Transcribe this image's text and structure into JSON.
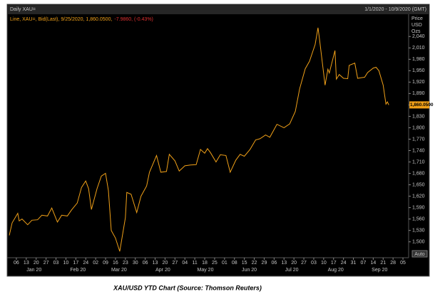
{
  "chart_data": {
    "type": "line",
    "title": "Daily XAU=",
    "date_range": "1/1/2020 - 10/9/2020 (GMT)",
    "legend_text": "Line, XAU=, Bid(Last), 9/25/2020, 1,860.0500,",
    "legend_change": "-7.9860, (-0.43%)",
    "y_axis_label": [
      "Price",
      "USD",
      "Ozs"
    ],
    "button": "Auto",
    "caption": "XAU/USD YTD Chart (Source: Thomson Reuters)",
    "xlim": [
      "Jan 01",
      "Oct 09"
    ],
    "ylim": [
      1462,
      2091
    ],
    "yticks": [
      {
        "value": 1500,
        "label": "1,500"
      },
      {
        "value": 1530,
        "label": "1,530"
      },
      {
        "value": 1560,
        "label": "1,560"
      },
      {
        "value": 1590,
        "label": "1,590"
      },
      {
        "value": 1620,
        "label": "1,620"
      },
      {
        "value": 1650,
        "label": "1,650"
      },
      {
        "value": 1680,
        "label": "1,680"
      },
      {
        "value": 1710,
        "label": "1,710"
      },
      {
        "value": 1740,
        "label": "1,740"
      },
      {
        "value": 1770,
        "label": "1,770"
      },
      {
        "value": 1800,
        "label": "1,800"
      },
      {
        "value": 1830,
        "label": "1,830"
      },
      {
        "value": 1860,
        "label": "1,860"
      },
      {
        "value": 1890,
        "label": "1,890"
      },
      {
        "value": 1920,
        "label": "1,920"
      },
      {
        "value": 1950,
        "label": "1,950"
      },
      {
        "value": 1980,
        "label": "1,980"
      },
      {
        "value": 2010,
        "label": "2,010"
      },
      {
        "value": 2040,
        "label": "2,040"
      }
    ],
    "xticks": [
      {
        "value": "Jan 06",
        "label": "06"
      },
      {
        "value": "Jan 13",
        "label": "13"
      },
      {
        "value": "Jan 20",
        "label": "20"
      },
      {
        "value": "Jan 27",
        "label": "27"
      },
      {
        "value": "Feb 03",
        "label": "03"
      },
      {
        "value": "Feb 10",
        "label": "10"
      },
      {
        "value": "Feb 17",
        "label": "17"
      },
      {
        "value": "Feb 24",
        "label": "24"
      },
      {
        "value": "Mar 02",
        "label": "02"
      },
      {
        "value": "Mar 09",
        "label": "09"
      },
      {
        "value": "Mar 16",
        "label": "16"
      },
      {
        "value": "Mar 23",
        "label": "23"
      },
      {
        "value": "Mar 30",
        "label": "30"
      },
      {
        "value": "Apr 06",
        "label": "06"
      },
      {
        "value": "Apr 13",
        "label": "13"
      },
      {
        "value": "Apr 20",
        "label": "20"
      },
      {
        "value": "Apr 27",
        "label": "27"
      },
      {
        "value": "May 04",
        "label": "04"
      },
      {
        "value": "May 11",
        "label": "11"
      },
      {
        "value": "May 18",
        "label": "18"
      },
      {
        "value": "May 25",
        "label": "25"
      },
      {
        "value": "Jun 01",
        "label": "01"
      },
      {
        "value": "Jun 08",
        "label": "08"
      },
      {
        "value": "Jun 15",
        "label": "15"
      },
      {
        "value": "Jun 22",
        "label": "22"
      },
      {
        "value": "Jun 29",
        "label": "29"
      },
      {
        "value": "Jul 06",
        "label": "06"
      },
      {
        "value": "Jul 13",
        "label": "13"
      },
      {
        "value": "Jul 20",
        "label": "20"
      },
      {
        "value": "Jul 27",
        "label": "27"
      },
      {
        "value": "Aug 03",
        "label": "03"
      },
      {
        "value": "Aug 10",
        "label": "10"
      },
      {
        "value": "Aug 17",
        "label": "17"
      },
      {
        "value": "Aug 24",
        "label": "24"
      },
      {
        "value": "Aug 31",
        "label": "31"
      },
      {
        "value": "Sep 07",
        "label": "07"
      },
      {
        "value": "Sep 14",
        "label": "14"
      },
      {
        "value": "Sep 21",
        "label": "21"
      },
      {
        "value": "Sep 28",
        "label": "28"
      },
      {
        "value": "Oct 05",
        "label": "05"
      }
    ],
    "month_labels": [
      "Jan 20",
      "Feb 20",
      "Mar 20",
      "Apr 20",
      "May 20",
      "Jun 20",
      "Jul 20",
      "Aug 20",
      "Sep 20"
    ],
    "last_price": {
      "value": 1860.05,
      "label": "1,860.0500"
    },
    "series": [
      {
        "name": "XAU=",
        "color": "#f0a018",
        "x": [
          "Jan 01",
          "Jan 03",
          "Jan 07",
          "Jan 08",
          "Jan 10",
          "Jan 14",
          "Jan 17",
          "Jan 21",
          "Jan 24",
          "Jan 28",
          "Jan 31",
          "Feb 04",
          "Feb 07",
          "Feb 11",
          "Feb 14",
          "Feb 18",
          "Feb 21",
          "Feb 24",
          "Feb 26",
          "Feb 28",
          "Mar 03",
          "Mar 06",
          "Mar 09",
          "Mar 11",
          "Mar 13",
          "Mar 16",
          "Mar 19",
          "Mar 20",
          "Mar 23",
          "Mar 24",
          "Mar 27",
          "Mar 31",
          "Apr 03",
          "Apr 07",
          "Apr 09",
          "Apr 14",
          "Apr 17",
          "Apr 21",
          "Apr 23",
          "Apr 27",
          "Apr 30",
          "May 04",
          "May 08",
          "May 12",
          "May 15",
          "May 18",
          "May 20",
          "May 22",
          "May 26",
          "May 29",
          "Jun 02",
          "Jun 05",
          "Jun 09",
          "Jun 12",
          "Jun 15",
          "Jun 19",
          "Jun 23",
          "Jun 26",
          "Jun 30",
          "Jul 03",
          "Jul 08",
          "Jul 13",
          "Jul 17",
          "Jul 21",
          "Jul 24",
          "Jul 28",
          "Jul 31",
          "Aug 04",
          "Aug 06",
          "Aug 07",
          "Aug 11",
          "Aug 13",
          "Aug 14",
          "Aug 18",
          "Aug 19",
          "Aug 21",
          "Aug 24",
          "Aug 27",
          "Aug 28",
          "Sep 01",
          "Sep 03",
          "Sep 08",
          "Sep 10",
          "Sep 14",
          "Sep 16",
          "Sep 18",
          "Sep 21",
          "Sep 23",
          "Sep 24",
          "Sep 25"
        ],
        "values": [
          1517,
          1550,
          1575,
          1555,
          1560,
          1545,
          1557,
          1558,
          1570,
          1568,
          1589,
          1552,
          1570,
          1568,
          1584,
          1602,
          1643,
          1660,
          1640,
          1585,
          1640,
          1673,
          1680,
          1635,
          1530,
          1510,
          1475,
          1497,
          1563,
          1630,
          1625,
          1577,
          1620,
          1647,
          1683,
          1727,
          1683,
          1685,
          1730,
          1713,
          1686,
          1700,
          1702,
          1703,
          1743,
          1733,
          1745,
          1735,
          1710,
          1729,
          1727,
          1683,
          1715,
          1730,
          1725,
          1743,
          1768,
          1771,
          1781,
          1775,
          1809,
          1800,
          1810,
          1843,
          1902,
          1955,
          1975,
          2019,
          2063,
          2035,
          1912,
          1954,
          1944,
          2003,
          1928,
          1940,
          1930,
          1929,
          1964,
          1970,
          1930,
          1933,
          1945,
          1957,
          1959,
          1950,
          1912,
          1862,
          1868,
          1860.05
        ]
      }
    ]
  }
}
